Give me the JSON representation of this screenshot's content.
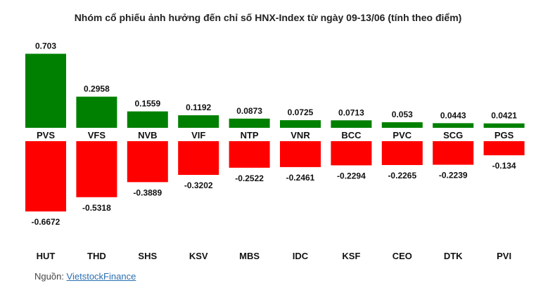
{
  "chart_data": {
    "type": "bar",
    "title": "Nhóm cổ phiếu ảnh hưởng đến chỉ số HNX-Index từ ngày 09-13/06 (tính theo điểm)",
    "positive": {
      "categories": [
        "PVS",
        "VFS",
        "NVB",
        "VIF",
        "NTP",
        "VNR",
        "BCC",
        "PVC",
        "SCG",
        "PGS"
      ],
      "values": [
        0.703,
        0.2958,
        0.1559,
        0.1192,
        0.0873,
        0.0725,
        0.0713,
        0.053,
        0.0443,
        0.0421
      ],
      "color": "#008000"
    },
    "negative": {
      "categories": [
        "HUT",
        "THD",
        "SHS",
        "KSV",
        "MBS",
        "IDC",
        "KSF",
        "CEO",
        "DTK",
        "PVI"
      ],
      "values": [
        -0.6672,
        -0.5318,
        -0.3889,
        -0.3202,
        -0.2522,
        -0.2461,
        -0.2294,
        -0.2265,
        -0.2239,
        -0.134
      ],
      "color": "#ff0000"
    },
    "grid": false
  },
  "source": {
    "label": "Nguồn: ",
    "link": "VietstockFinance"
  }
}
